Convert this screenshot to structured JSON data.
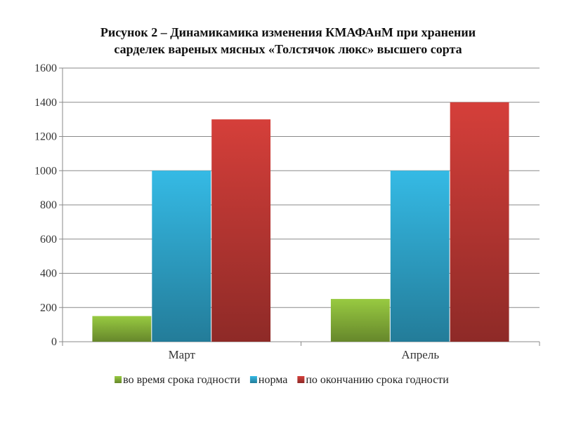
{
  "chart_data": {
    "type": "bar",
    "title_lines": [
      "Рисунок 2 – Динамикамика изменения КМАФАнМ при хранении",
      "сарделек вареных мясных «Толстячок люкс» высшего сорта"
    ],
    "xlabel": "",
    "ylabel": "",
    "categories": [
      "Март",
      "Апрель"
    ],
    "series": [
      {
        "name": "во время срока годности",
        "values": [
          150,
          250
        ],
        "color": "#8DBB3C"
      },
      {
        "name": "норма",
        "values": [
          1000,
          1000
        ],
        "color": "#31ACD4"
      },
      {
        "name": "по окончанию срока годности",
        "values": [
          1300,
          1400
        ],
        "color": "#C53A36"
      }
    ],
    "ylim": [
      0,
      1600
    ],
    "yticks": [
      0,
      200,
      400,
      600,
      800,
      1000,
      1200,
      1400,
      1600
    ],
    "grid": true,
    "legend_position": "bottom"
  }
}
